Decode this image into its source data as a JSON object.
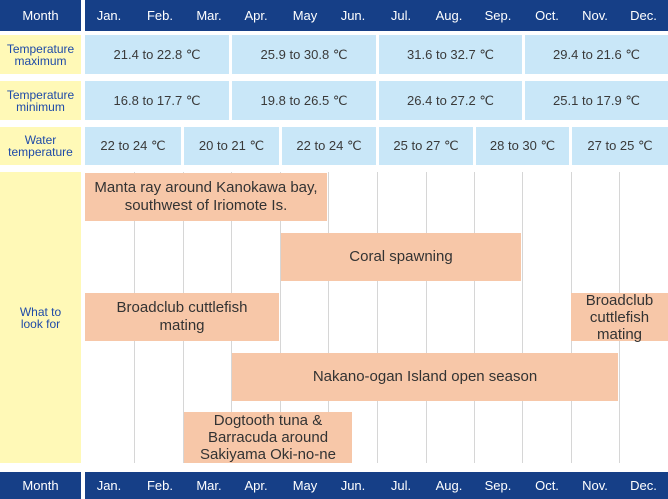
{
  "header": {
    "label": "Month",
    "months": [
      "Jan.",
      "Feb.",
      "Mar.",
      "Apr.",
      "May",
      "Jun.",
      "Jul.",
      "Aug.",
      "Sep.",
      "Oct.",
      "Nov.",
      "Dec."
    ]
  },
  "footer": {
    "label": "Month",
    "months": [
      "Jan.",
      "Feb.",
      "Mar.",
      "Apr.",
      "May",
      "Jun.",
      "Jul.",
      "Aug.",
      "Sep.",
      "Oct.",
      "Nov.",
      "Dec."
    ]
  },
  "rows": {
    "temp_max": {
      "label": "Temperature maximum",
      "ranges": [
        "21.4 to 22.8 ℃",
        "25.9 to 30.8 ℃",
        "31.6 to 32.7 ℃",
        "29.4 to 21.6 ℃"
      ]
    },
    "temp_min": {
      "label": "Temperature minimum",
      "ranges": [
        "16.8 to 17.7 ℃",
        "19.8 to 26.5 ℃",
        "26.4 to 27.2 ℃",
        "25.1 to 17.9 ℃"
      ]
    },
    "water": {
      "label": "Water temperature",
      "ranges": [
        "22 to 24 ℃",
        "20 to 21 ℃",
        "22 to 24 ℃",
        "25 to 27 ℃",
        "28 to 30 ℃",
        "27 to 25 ℃"
      ]
    },
    "look": {
      "label": "What to look for",
      "events": [
        "Manta ray around Kanokawa bay, southwest of Iriomote Is.",
        "Coral spawning",
        "Broadclub cuttlefish mating",
        "Broadclub cuttlefish mating",
        "Nakano-ogan Island open season",
        "Dogtooth tuna & Barracuda around Sakiyama Oki-no-ne"
      ]
    }
  },
  "colors": {
    "header_bg": "#163f87",
    "label_bg": "#fff9b7",
    "label_text": "#1e4aa8",
    "cell_bg": "#c9e7f8",
    "event_bg": "#f7c7a8"
  }
}
